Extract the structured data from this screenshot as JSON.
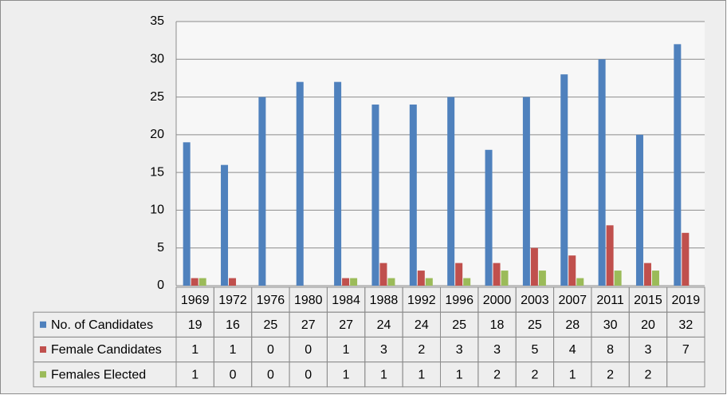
{
  "chart_data": {
    "type": "bar",
    "categories": [
      "1969",
      "1972",
      "1976",
      "1980",
      "1984",
      "1988",
      "1992",
      "1996",
      "2000",
      "2003",
      "2007",
      "2011",
      "2015",
      "2019"
    ],
    "series": [
      {
        "name": "No. of Candidates",
        "color": "#4f81bd",
        "values": [
          19,
          16,
          25,
          27,
          27,
          24,
          24,
          25,
          18,
          25,
          28,
          30,
          20,
          32
        ]
      },
      {
        "name": "Female Candidates",
        "color": "#c0504d",
        "values": [
          1,
          1,
          0,
          0,
          1,
          3,
          2,
          3,
          3,
          5,
          4,
          8,
          3,
          7
        ]
      },
      {
        "name": "Females Elected",
        "color": "#9bbb59",
        "values": [
          1,
          0,
          0,
          0,
          1,
          1,
          1,
          1,
          2,
          2,
          1,
          2,
          2,
          null
        ]
      }
    ],
    "ylim": [
      0,
      35
    ],
    "yticks": [
      0,
      5,
      10,
      15,
      20,
      25,
      30,
      35
    ],
    "grid": true
  }
}
